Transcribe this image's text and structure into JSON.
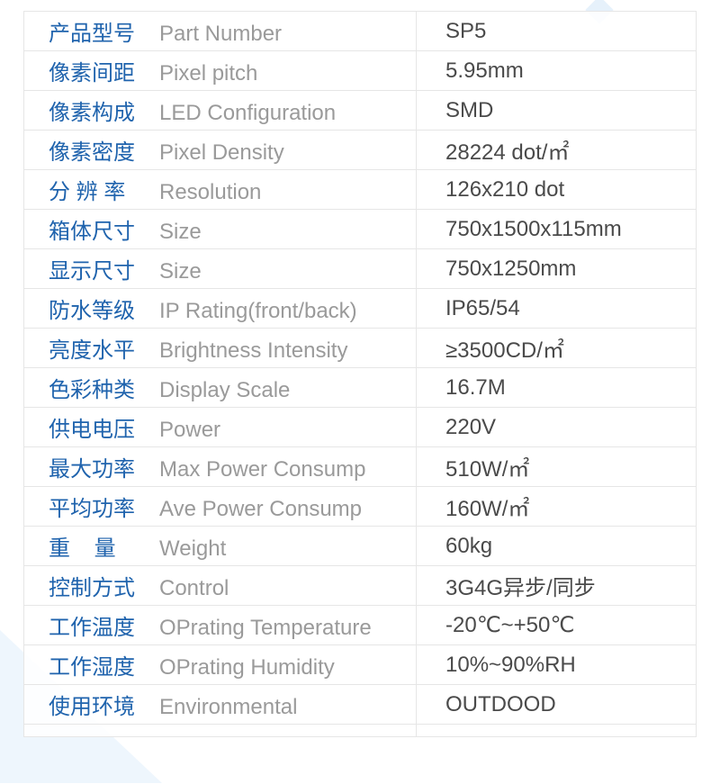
{
  "specs": [
    {
      "cn": "产品型号",
      "en": "Part Number",
      "value": "SP5"
    },
    {
      "cn": "像素间距",
      "en": "Pixel pitch",
      "value": "5.95mm"
    },
    {
      "cn": "像素构成",
      "en": "LED Configuration",
      "value": "SMD"
    },
    {
      "cn": "像素密度",
      "en": "Pixel Density",
      "value": "28224 dot/㎡"
    },
    {
      "cn": "分 辨 率",
      "en": "Resolution",
      "value": "126x210 dot"
    },
    {
      "cn": "箱体尺寸",
      "en": "Size",
      "value": "750x1500x115mm"
    },
    {
      "cn": "显示尺寸",
      "en": "Size",
      "value": "750x1250mm"
    },
    {
      "cn": "防水等级",
      "en": "IP Rating(front/back)",
      "value": "IP65/54"
    },
    {
      "cn": "亮度水平",
      "en": "Brightness Intensity",
      "value": "≥3500CD/㎡"
    },
    {
      "cn": "色彩种类",
      "en": "Display Scale",
      "value": "16.7M"
    },
    {
      "cn": "供电电压",
      "en": "Power",
      "value": "220V"
    },
    {
      "cn": "最大功率",
      "en": "Max Power Consump",
      "value": "510W/㎡"
    },
    {
      "cn": "平均功率",
      "en": "Ave Power Consump",
      "value": "160W/㎡"
    },
    {
      "cn": "重    量",
      "en": "Weight",
      "value": "60kg"
    },
    {
      "cn": "控制方式",
      "en": "Control",
      "value": "3G4G异步/同步"
    },
    {
      "cn": "工作温度",
      "en": "OPrating Temperature",
      "value": "-20℃~+50℃"
    },
    {
      "cn": "工作湿度",
      "en": "OPrating Humidity",
      "value": "10%~90%RH"
    },
    {
      "cn": "使用环境",
      "en": "Environmental",
      "value": "OUTDOOD"
    }
  ]
}
